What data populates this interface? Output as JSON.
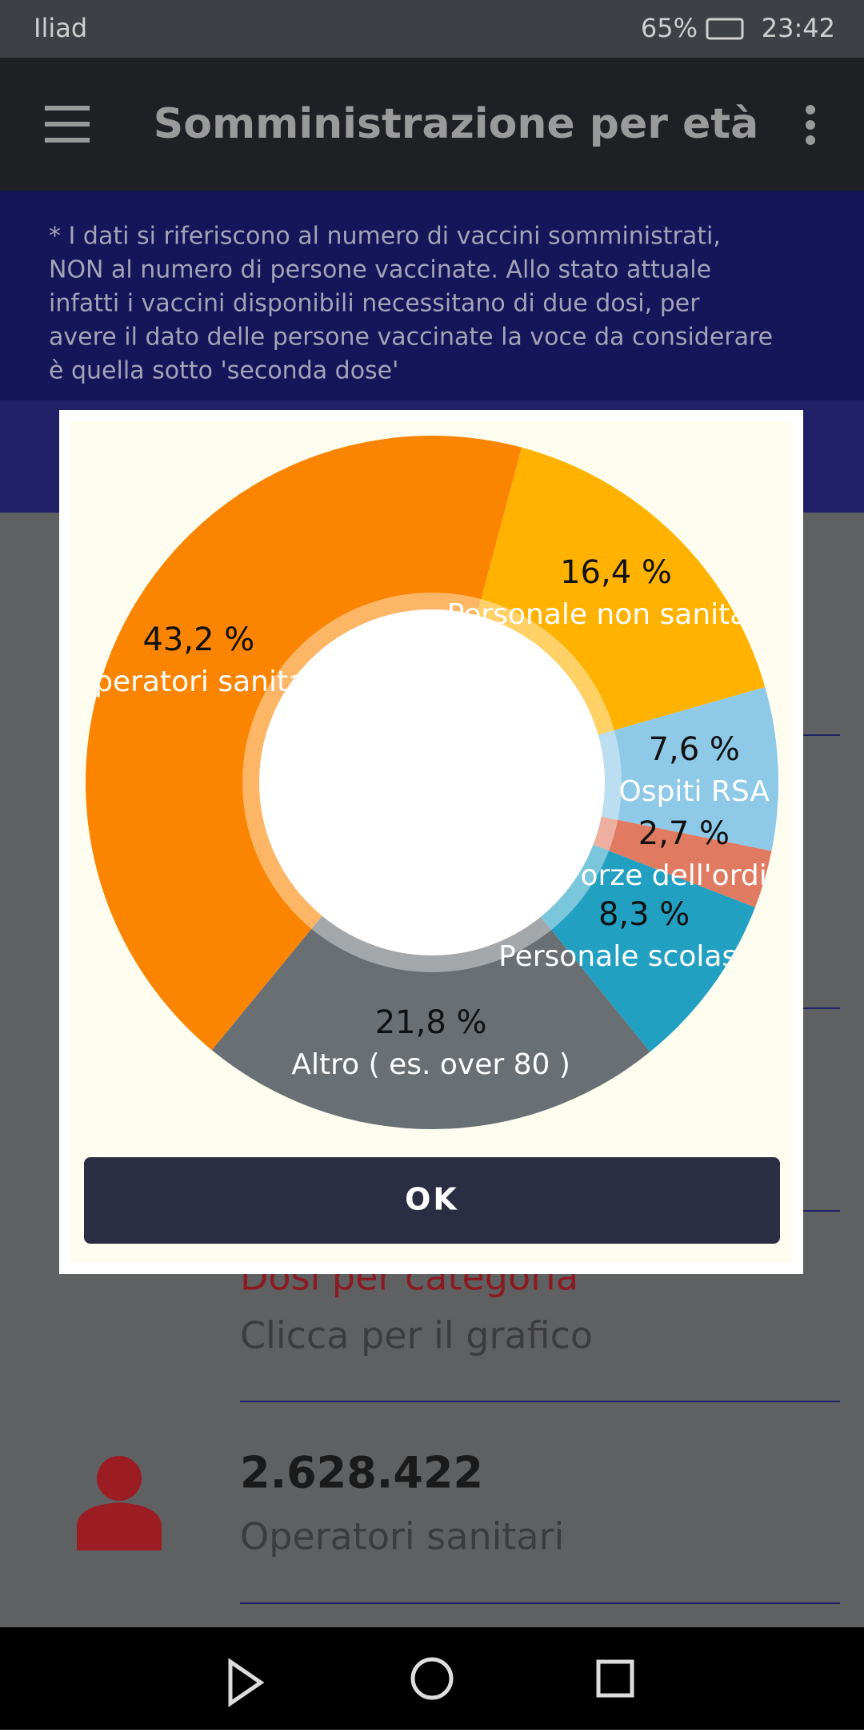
{
  "status_bar": {
    "carrier": "Iliad",
    "battery": "65%",
    "time": "23:42"
  },
  "app_bar": {
    "title": "Somministrazione per età"
  },
  "notice": {
    "lines": [
      "* I dati si riferiscono al numero di vaccini somministrati,",
      "NON al numero di persone vaccinate. Allo stato attuale",
      "infatti i vaccini disponibili necessitano di due dosi, per",
      "avere il dato delle persone vaccinate la voce da considerare",
      "è quella sotto 'seconda dose'"
    ]
  },
  "list": {
    "items": [
      {
        "title": "Dosi per categoria",
        "subtitle": "Clicca per il grafico"
      },
      {
        "title": "2.628.422",
        "subtitle": "Operatori sanitari"
      }
    ]
  },
  "dialog": {
    "button": "OK"
  },
  "chart_data": {
    "type": "donut",
    "categories": [
      "Personale non sanitario",
      "Ospiti RSA",
      "Forze dell'ordine",
      "Personale scolastico",
      "Altro ( es. over 80 )",
      "Operatori sanitari"
    ],
    "values": [
      16.4,
      7.6,
      2.7,
      8.3,
      21.8,
      43.2
    ],
    "value_labels": [
      "16,4 %",
      "7,6 %",
      "2,7 %",
      "8,3 %",
      "21,8 %",
      "43,2 %"
    ],
    "colors": [
      "#ffb300",
      "#8ec9e8",
      "#e07b62",
      "#22a0c2",
      "#6a6f74",
      "#fb8500"
    ]
  }
}
